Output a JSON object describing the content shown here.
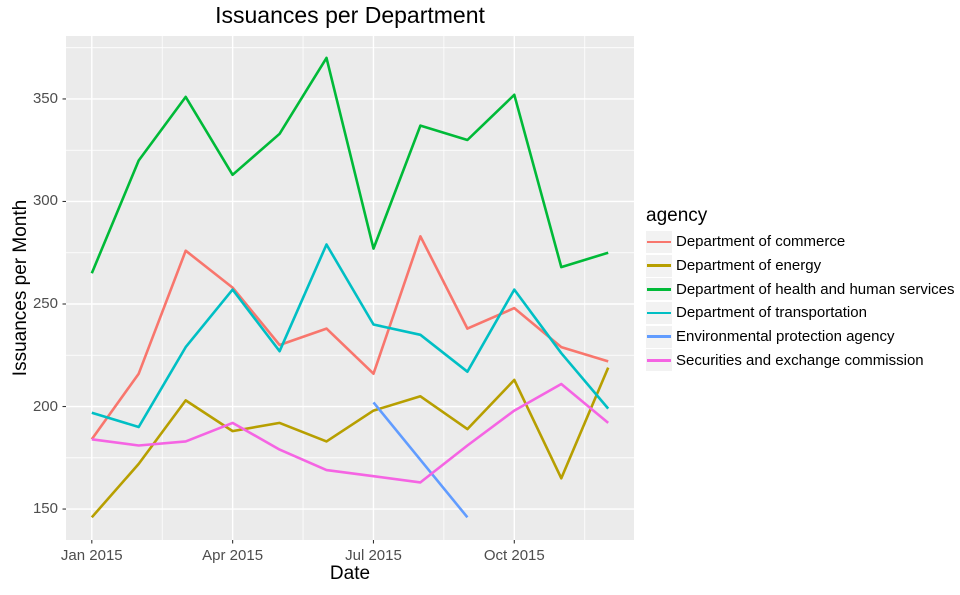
{
  "chart": {
    "title": "Issuances per Department",
    "xlabel": "Date",
    "ylabel": "Issuances per Month",
    "legend_title": "agency"
  },
  "chart_data": {
    "type": "line",
    "x": [
      "2015-01",
      "2015-02",
      "2015-03",
      "2015-04",
      "2015-05",
      "2015-06",
      "2015-07",
      "2015-08",
      "2015-09",
      "2015-10",
      "2015-11",
      "2015-12"
    ],
    "x_tick_labels": [
      "Jan 2015",
      "Apr 2015",
      "Jul 2015",
      "Oct 2015"
    ],
    "x_tick_indices": [
      0,
      3,
      6,
      9
    ],
    "x_minor_indices": [
      1.5,
      4.5,
      7.5,
      10.5
    ],
    "y_ticks_major": [
      150,
      200,
      250,
      300,
      350
    ],
    "y_ticks_minor": [
      175,
      225,
      275,
      325,
      375
    ],
    "ylim": [
      135.8,
      380.2
    ],
    "legend_position": "right",
    "grid": true,
    "panel_background": "#EBEBEB",
    "grid_color": "#FFFFFF",
    "tick_label_color": "#4D4D4D",
    "tick_mark_color": "#333333",
    "series": [
      {
        "name": "Department of commerce",
        "color": "#F8766D",
        "values": [
          184,
          216,
          276,
          258,
          230,
          238,
          216,
          283,
          238,
          248,
          229,
          222
        ]
      },
      {
        "name": "Department of energy",
        "color": "#B79F00",
        "values": [
          146,
          172,
          203,
          188,
          192,
          183,
          198,
          205,
          189,
          213,
          165,
          219
        ]
      },
      {
        "name": "Department of health and human services",
        "color": "#00BA38",
        "values": [
          265,
          320,
          351,
          313,
          333,
          370,
          277,
          337,
          330,
          352,
          268,
          275
        ]
      },
      {
        "name": "Department of transportation",
        "color": "#00BFC4",
        "values": [
          197,
          190,
          229,
          257,
          227,
          279,
          240,
          235,
          217,
          257,
          226,
          199
        ]
      },
      {
        "name": "Environmental protection agency",
        "color": "#619CFF",
        "values": [
          null,
          null,
          null,
          null,
          null,
          null,
          202,
          174,
          146,
          null,
          null,
          null
        ]
      },
      {
        "name": "Securities and exchange commission",
        "color": "#F564E3",
        "values": [
          184,
          181,
          183,
          192,
          179,
          169,
          166,
          163,
          181,
          198,
          211,
          192
        ]
      }
    ]
  }
}
